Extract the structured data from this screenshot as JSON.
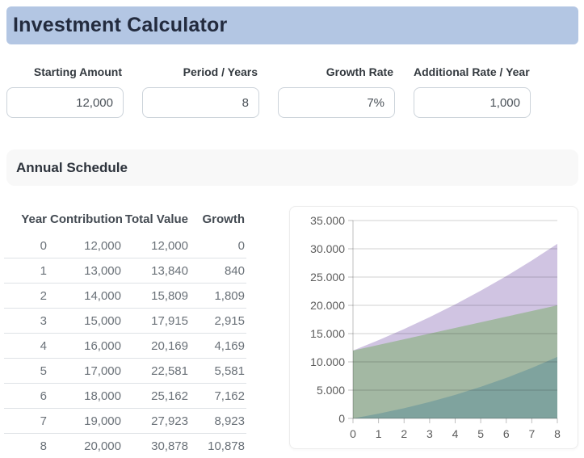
{
  "header": {
    "title": "Investment Calculator"
  },
  "inputs": [
    {
      "label": "Starting Amount",
      "value": "12,000"
    },
    {
      "label": "Period / Years",
      "value": "8"
    },
    {
      "label": "Growth Rate",
      "value": "7%"
    },
    {
      "label": "Additional Rate / Year",
      "value": "1,000"
    }
  ],
  "schedule": {
    "section_title": "Annual Schedule",
    "columns": [
      "Year",
      "Contribution",
      "Total Value",
      "Growth"
    ],
    "rows": [
      [
        "0",
        "12,000",
        "12,000",
        "0"
      ],
      [
        "1",
        "13,000",
        "13,840",
        "840"
      ],
      [
        "2",
        "14,000",
        "15,809",
        "1,809"
      ],
      [
        "3",
        "15,000",
        "17,915",
        "2,915"
      ],
      [
        "4",
        "16,000",
        "20,169",
        "4,169"
      ],
      [
        "5",
        "17,000",
        "22,581",
        "5,581"
      ],
      [
        "6",
        "18,000",
        "25,162",
        "7,162"
      ],
      [
        "7",
        "19,000",
        "27,923",
        "8,923"
      ],
      [
        "8",
        "20,000",
        "30,878",
        "10,878"
      ]
    ]
  },
  "chart_data": {
    "type": "area",
    "x": [
      0,
      1,
      2,
      3,
      4,
      5,
      6,
      7,
      8
    ],
    "series": [
      {
        "name": "Total Value",
        "values": [
          12000,
          13840,
          15809,
          17915,
          20169,
          22581,
          25162,
          27923,
          30878
        ],
        "fill": "#d0c4e2"
      },
      {
        "name": "Contribution",
        "values": [
          12000,
          13000,
          14000,
          15000,
          16000,
          17000,
          18000,
          19000,
          20000
        ],
        "fill": "#a3b8a3"
      },
      {
        "name": "Growth",
        "values": [
          0,
          840,
          1809,
          2915,
          4169,
          5581,
          7162,
          8923,
          10878
        ],
        "fill": "#7fa39e"
      }
    ],
    "ylim": [
      0,
      35000
    ],
    "ytick_step": 5000,
    "ytick_labels": [
      "0",
      "5.000",
      "10.000",
      "15.000",
      "20.000",
      "25.000",
      "30.000",
      "35.000"
    ],
    "xtick_labels": [
      "0",
      "1",
      "2",
      "3",
      "4",
      "5",
      "6",
      "7",
      "8"
    ],
    "grid": true,
    "legend": false,
    "grid_color": "rgba(0,0,0,0.18)",
    "axis_color": "rgba(0,0,0,0.25)"
  }
}
